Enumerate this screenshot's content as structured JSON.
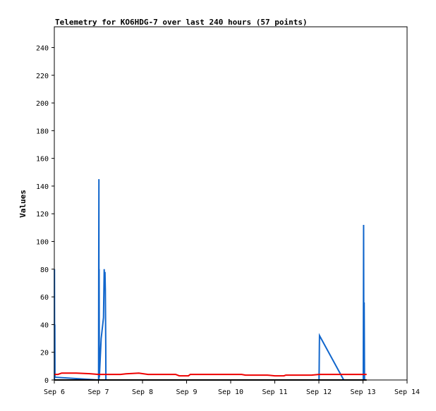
{
  "chart_data": {
    "type": "line",
    "title": "Telemetry for KO6HDG-7 over last 240 hours (57 points)",
    "xlabel": "",
    "ylabel": "Values",
    "xlim": [
      "Sep 6",
      "Sep 14"
    ],
    "ylim": [
      0,
      255
    ],
    "grid": false,
    "legend": "none",
    "x_ticks": [
      "Sep 6",
      "Sep 7",
      "Sep 8",
      "Sep 9",
      "Sep 10",
      "Sep 11",
      "Sep 12",
      "Sep 13",
      "Sep 14"
    ],
    "y_ticks": [
      0,
      20,
      40,
      60,
      80,
      100,
      120,
      140,
      160,
      180,
      200,
      220,
      240
    ],
    "series": [
      {
        "color": "#1166cc",
        "points": [
          [
            "Sep 6 00:05",
            0
          ],
          [
            "Sep 6 00:05",
            80
          ],
          [
            "Sep 6 00:10",
            8
          ],
          [
            "Sep 6 00:15",
            40
          ],
          [
            "Sep 6 00:20",
            2
          ],
          [
            "Sep 7 00:05",
            0
          ],
          [
            "Sep 7 00:10",
            73
          ],
          [
            "Sep 7 00:15",
            145
          ],
          [
            "Sep 7 00:18",
            0
          ],
          [
            "Sep 7 00:24",
            80
          ],
          [
            "Sep 7 00:30",
            2
          ],
          [
            "Sep 7 01:30",
            30
          ],
          [
            "Sep 7 02:45",
            45
          ],
          [
            "Sep 7 03:10",
            80
          ],
          [
            "Sep 7 03:30",
            65
          ],
          [
            "Sep 7 03:35",
            78
          ],
          [
            "Sep 7 03:45",
            65
          ],
          [
            "Sep 7 04:00",
            25
          ],
          [
            "Sep 7 04:05",
            0
          ],
          [
            "Sep 12 00:05",
            0
          ],
          [
            "Sep 12 00:10",
            8
          ],
          [
            "Sep 12 00:15",
            25
          ],
          [
            "Sep 12 00:20",
            32
          ],
          [
            "Sep 12 13:30",
            0
          ],
          [
            "Sep 13 00:10",
            0
          ],
          [
            "Sep 13 00:20",
            112
          ],
          [
            "Sep 13 00:30",
            0
          ],
          [
            "Sep 13 00:40",
            56
          ],
          [
            "Sep 13 00:50",
            0
          ]
        ]
      },
      {
        "color": "#ee0000",
        "points": [
          [
            "Sep 6 00:00",
            4
          ],
          [
            "Sep 6 02:00",
            4
          ],
          [
            "Sep 6 04:00",
            5
          ],
          [
            "Sep 6 12:00",
            5
          ],
          [
            "Sep 6 20:00",
            4.5
          ],
          [
            "Sep 7 00:00",
            4
          ],
          [
            "Sep 7 12:00",
            4
          ],
          [
            "Sep 7 15:00",
            4.5
          ],
          [
            "Sep 7 22:00",
            5
          ],
          [
            "Sep 8 03:00",
            4
          ],
          [
            "Sep 8 18:00",
            4
          ],
          [
            "Sep 8 20:00",
            3
          ],
          [
            "Sep 9 01:00",
            3
          ],
          [
            "Sep 9 02:00",
            4
          ],
          [
            "Sep 10 06:00",
            4
          ],
          [
            "Sep 10 08:00",
            3.5
          ],
          [
            "Sep 10 20:00",
            3.5
          ],
          [
            "Sep 11 00:00",
            3
          ],
          [
            "Sep 11 05:00",
            3
          ],
          [
            "Sep 11 06:00",
            3.5
          ],
          [
            "Sep 11 20:00",
            3.5
          ],
          [
            "Sep 12 00:00",
            4
          ],
          [
            "Sep 13 02:00",
            4
          ]
        ]
      },
      {
        "color": "#000000",
        "points": [
          [
            "Sep 6 00:00",
            0
          ],
          [
            "Sep 13 02:00",
            0
          ]
        ]
      }
    ]
  }
}
